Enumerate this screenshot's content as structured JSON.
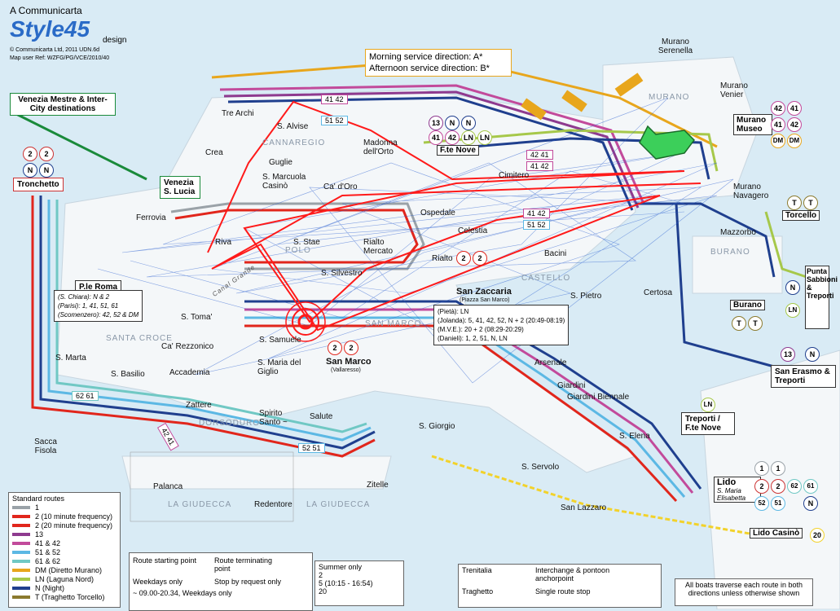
{
  "header": {
    "company": "A Communicarta",
    "brand": "Style45",
    "brand_suffix": "design",
    "copyright": "© Communicarta Ltd, 2011 UDN.6d",
    "map_ref": "Map user Ref: WZFG/PG/VCE/2010/40"
  },
  "direction_box": {
    "morning": "Morning service direction: A*",
    "afternoon": "Afternoon service direction: B*"
  },
  "mestre_box": "Venezia Mestre & Inter-City destinations",
  "stops": {
    "tronchetto": "Tronchetto",
    "venezia_lucia": "Venezia S. Lucia",
    "ferrovia": "Ferrovia",
    "tre_archi": "Tre Archi",
    "crea": "Crea",
    "s_alvise": "S. Alvise",
    "guglie": "Guglie",
    "s_marcuola": "S. Marcuola Casinò",
    "ca_doro": "Ca' d'Oro",
    "madonna": "Madonna dell'Orto",
    "fte_nove": "F.te Nove",
    "ospedale": "Ospedale",
    "celestia": "Celestia",
    "bacini": "Bacini",
    "riva": "Riva",
    "s_stae": "S. Stae",
    "rialto_mercato": "Rialto Mercato",
    "rialto": "Rialto",
    "s_silvestro": "S. Silvestro",
    "ple_roma": "P.le Roma",
    "s_toma": "S. Toma'",
    "s_samuele": "S. Samuele",
    "ca_rezzonico": "Ca' Rezzonico",
    "accademia": "Accademia",
    "s_maria_giglio": "S. Maria del Giglio",
    "san_marco": "San Marco",
    "vallaresso": "(Vallaresso)",
    "s_marta": "S. Marta",
    "s_basilio": "S. Basilio",
    "zattere": "Zattere",
    "spirito_santo": "Spirito Santo ~",
    "salute": "Salute",
    "sacca_fisola": "Sacca Fisola",
    "palanca": "Palanca",
    "redentore": "Redentore",
    "zitelle": "Zitelle",
    "s_giorgio": "S. Giorgio",
    "san_zaccaria": "San Zaccaria",
    "piazza_san_marco": "(Piazza San Marco)",
    "arsenale": "Arsenale",
    "giardini": "Giardini",
    "giardini_biennale": "Giardini Biennale",
    "s_elena": "S. Elena",
    "s_servolo": "S. Servolo",
    "san_lazzaro": "San Lazzaro",
    "s_pietro": "S. Pietro",
    "certosa": "Certosa",
    "lido": "Lido",
    "lido_sub": "S. Maria Elisabetta",
    "lido_casino": "Lido Casinò",
    "murano_serenella": "Murano Serenella",
    "murano_venier": "Murano Venier",
    "murano_museo": "Murano Museo",
    "murano_navagero": "Murano Navagero",
    "cimitero": "Cimitero",
    "mazzorbo": "Mazzorbo",
    "torcello": "Torcello",
    "burano": "Burano",
    "punta_sabbioni": "Punta Sabbioni & Treporti",
    "san_erasmo": "San Erasmo & Treporti",
    "treporti_fte": "Treporti / F.te Nove"
  },
  "areas": {
    "cannaregio": "CANNAREGIO",
    "santa_croce": "SANTA CROCE",
    "dorsoduro": "DORSODURO",
    "castello": "CASTELLO",
    "san_marco": "SAN MARCO",
    "giudecca_1": "LA GIUDECCA",
    "giudecca_2": "LA GIUDECCA",
    "murano": "MURANO",
    "burano": "BURANO",
    "polo": "POLO",
    "canal_grande": "Canal Grande"
  },
  "ple_roma_box": [
    "(S. Chiara): N & 2",
    "(Parisi): 1, 41, 51, 61",
    "(Scomenzero): 42, 52 & DM"
  ],
  "san_zaccaria_box": [
    "(Pietà): LN",
    "(Jolanda): 5, 41, 42, 52, N + 2 (20:49-08:19)",
    "(M.V.E.): 20 + 2 (08:29-20:29)",
    "(Danieli): 1, 2, 51, N, LN"
  ],
  "route_tags": {
    "t4142_top": "41 42",
    "t5152_top": "51 52",
    "t4142_mid": "42 41",
    "t4142_mid2": "41 42",
    "t4142_cel": "41 42",
    "t5152_cel": "51 52",
    "t6261": "62 61",
    "t4241": "42 41",
    "t5251": "52 51"
  },
  "badges": {
    "fte_nove": [
      "13",
      "N",
      "N",
      "41",
      "42",
      "LN",
      "LN"
    ],
    "murano_museo": [
      "42",
      "41",
      "41",
      "42",
      "DM",
      "DM"
    ],
    "tronchetto": [
      "2",
      "2",
      "N",
      "N"
    ],
    "torcello": [
      "T",
      "T"
    ],
    "burano": [
      "T",
      "T"
    ],
    "punta_sabbioni": [
      "N",
      "LN"
    ],
    "san_erasmo": [
      "13",
      "N"
    ],
    "treporti": [
      "LN"
    ],
    "lido": [
      "1",
      "1",
      "2",
      "2",
      "62",
      "61",
      "52",
      "51",
      "N"
    ],
    "lido_casino": [
      "20"
    ],
    "rialto": [
      "2",
      "2"
    ],
    "san_marco": [
      "2",
      "2"
    ]
  },
  "legend": {
    "title": "Standard routes",
    "routes": [
      {
        "label": "1",
        "color": "#9aa2a8"
      },
      {
        "label": "2 (10 minute frequency)",
        "color": "#e1261c"
      },
      {
        "label": "2 (20 minute frequency)",
        "color": "#e1261c"
      },
      {
        "label": "13",
        "color": "#8e3a8f"
      },
      {
        "label": "41 & 42",
        "color": "#c24a9b"
      },
      {
        "label": "51 & 52",
        "color": "#5cb8e4"
      },
      {
        "label": "61 & 62",
        "color": "#70c8c4"
      },
      {
        "label": "DM (Diretto Murano)",
        "color": "#e8a61c"
      },
      {
        "label": "LN (Laguna Nord)",
        "color": "#a6c84a"
      },
      {
        "label": "N (Night)",
        "color": "#1f3f8e"
      },
      {
        "label": "T (Traghetto Torcello)",
        "color": "#8b7a2e"
      }
    ],
    "route_start": "Route starting point",
    "route_term": "Route terminating point",
    "weekdays": "Weekdays only",
    "weekdays_time": "~ 09.00-20.34, Weekdays only",
    "stop_request": "Stop by request only",
    "summer_title": "Summer only",
    "summer": [
      "2",
      "5 (10:15 - 16:54)",
      "20"
    ],
    "trenitalia": "Trenitalia",
    "traghetto": "Traghetto",
    "interchange": "Interchange & pontoon anchorpoint",
    "single_stop": "Single route stop"
  },
  "footer_note": "All boats traverse each route in both directions unless otherwise shown",
  "colors": {
    "water": "#d9ebf5",
    "land": "#ffffff",
    "route_red": "#e1261c",
    "route_blue": "#1f3f8e",
    "route_purple": "#c24a9b",
    "route_cyan": "#5cb8e4",
    "route_orange": "#e8a61c",
    "route_green": "#a6c84a",
    "route_teal": "#70c8c4",
    "overlay_red": "#ff1a1a",
    "overlay_blue": "#2b5fd0"
  }
}
